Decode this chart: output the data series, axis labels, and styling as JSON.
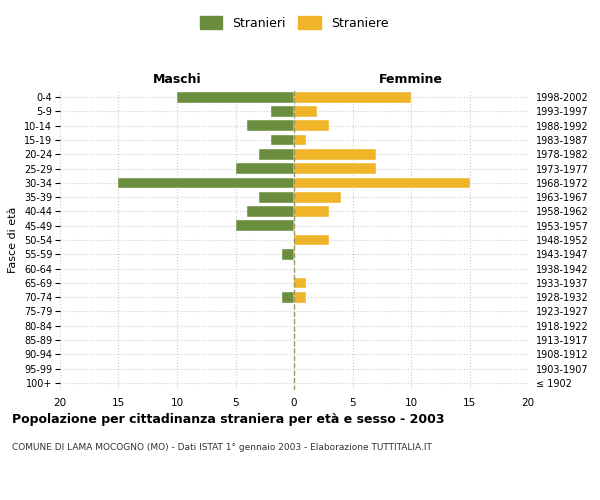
{
  "age_groups": [
    "100+",
    "95-99",
    "90-94",
    "85-89",
    "80-84",
    "75-79",
    "70-74",
    "65-69",
    "60-64",
    "55-59",
    "50-54",
    "45-49",
    "40-44",
    "35-39",
    "30-34",
    "25-29",
    "20-24",
    "15-19",
    "10-14",
    "5-9",
    "0-4"
  ],
  "birth_years": [
    "≤ 1902",
    "1903-1907",
    "1908-1912",
    "1913-1917",
    "1918-1922",
    "1923-1927",
    "1928-1932",
    "1933-1937",
    "1938-1942",
    "1943-1947",
    "1948-1952",
    "1953-1957",
    "1958-1962",
    "1963-1967",
    "1968-1972",
    "1973-1977",
    "1978-1982",
    "1983-1987",
    "1988-1992",
    "1993-1997",
    "1998-2002"
  ],
  "maschi": [
    0,
    0,
    0,
    0,
    0,
    0,
    1,
    0,
    0,
    1,
    0,
    5,
    4,
    3,
    15,
    5,
    3,
    2,
    4,
    2,
    10
  ],
  "femmine": [
    0,
    0,
    0,
    0,
    0,
    0,
    1,
    1,
    0,
    0,
    3,
    0,
    3,
    4,
    15,
    7,
    7,
    1,
    3,
    2,
    10
  ],
  "male_color": "#6b8e3e",
  "female_color": "#f0b429",
  "background_color": "#ffffff",
  "grid_color": "#cccccc",
  "xlim": 20,
  "title": "Popolazione per cittadinanza straniera per età e sesso - 2003",
  "subtitle": "COMUNE DI LAMA MOCOGNO (MO) - Dati ISTAT 1° gennaio 2003 - Elaborazione TUTTITALIA.IT",
  "xlabel_left": "Maschi",
  "xlabel_right": "Femmine",
  "ylabel_left": "Fasce di età",
  "legend_male": "Stranieri",
  "legend_female": "Straniere"
}
